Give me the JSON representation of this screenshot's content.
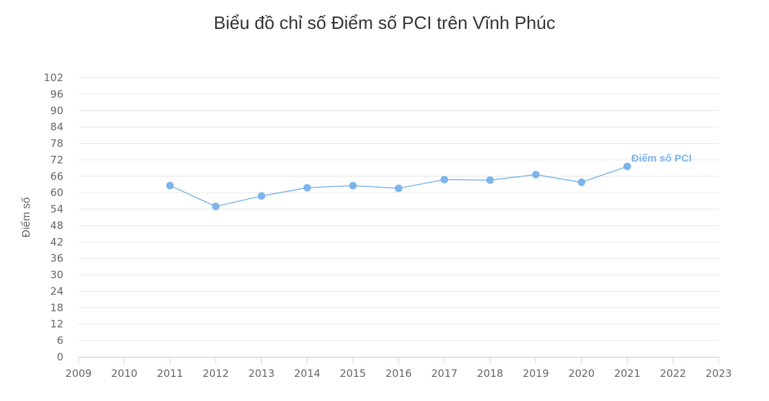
{
  "chart_data": {
    "type": "line",
    "title": "Biểu đồ chỉ số Điểm số PCI trên Vĩnh Phúc",
    "xlabel": "",
    "ylabel": "Điểm số",
    "x_ticks": [
      "2009",
      "2010",
      "2011",
      "2012",
      "2013",
      "2014",
      "2015",
      "2016",
      "2017",
      "2018",
      "2019",
      "2020",
      "2021",
      "2022",
      "2023"
    ],
    "y_ticks": [
      0,
      6,
      12,
      18,
      24,
      30,
      36,
      42,
      48,
      54,
      60,
      66,
      72,
      78,
      84,
      90,
      96,
      102
    ],
    "ylim": [
      0,
      102
    ],
    "xlim": [
      2009,
      2023
    ],
    "grid": true,
    "legend": "none",
    "series": [
      {
        "name": "Điểm số PCI",
        "color": "#7cb5ec",
        "x": [
          2011,
          2012,
          2013,
          2014,
          2015,
          2016,
          2017,
          2018,
          2019,
          2020,
          2021
        ],
        "values": [
          62.6,
          55.0,
          58.8,
          61.8,
          62.6,
          61.6,
          64.8,
          64.6,
          66.6,
          63.8,
          69.6
        ]
      }
    ]
  }
}
